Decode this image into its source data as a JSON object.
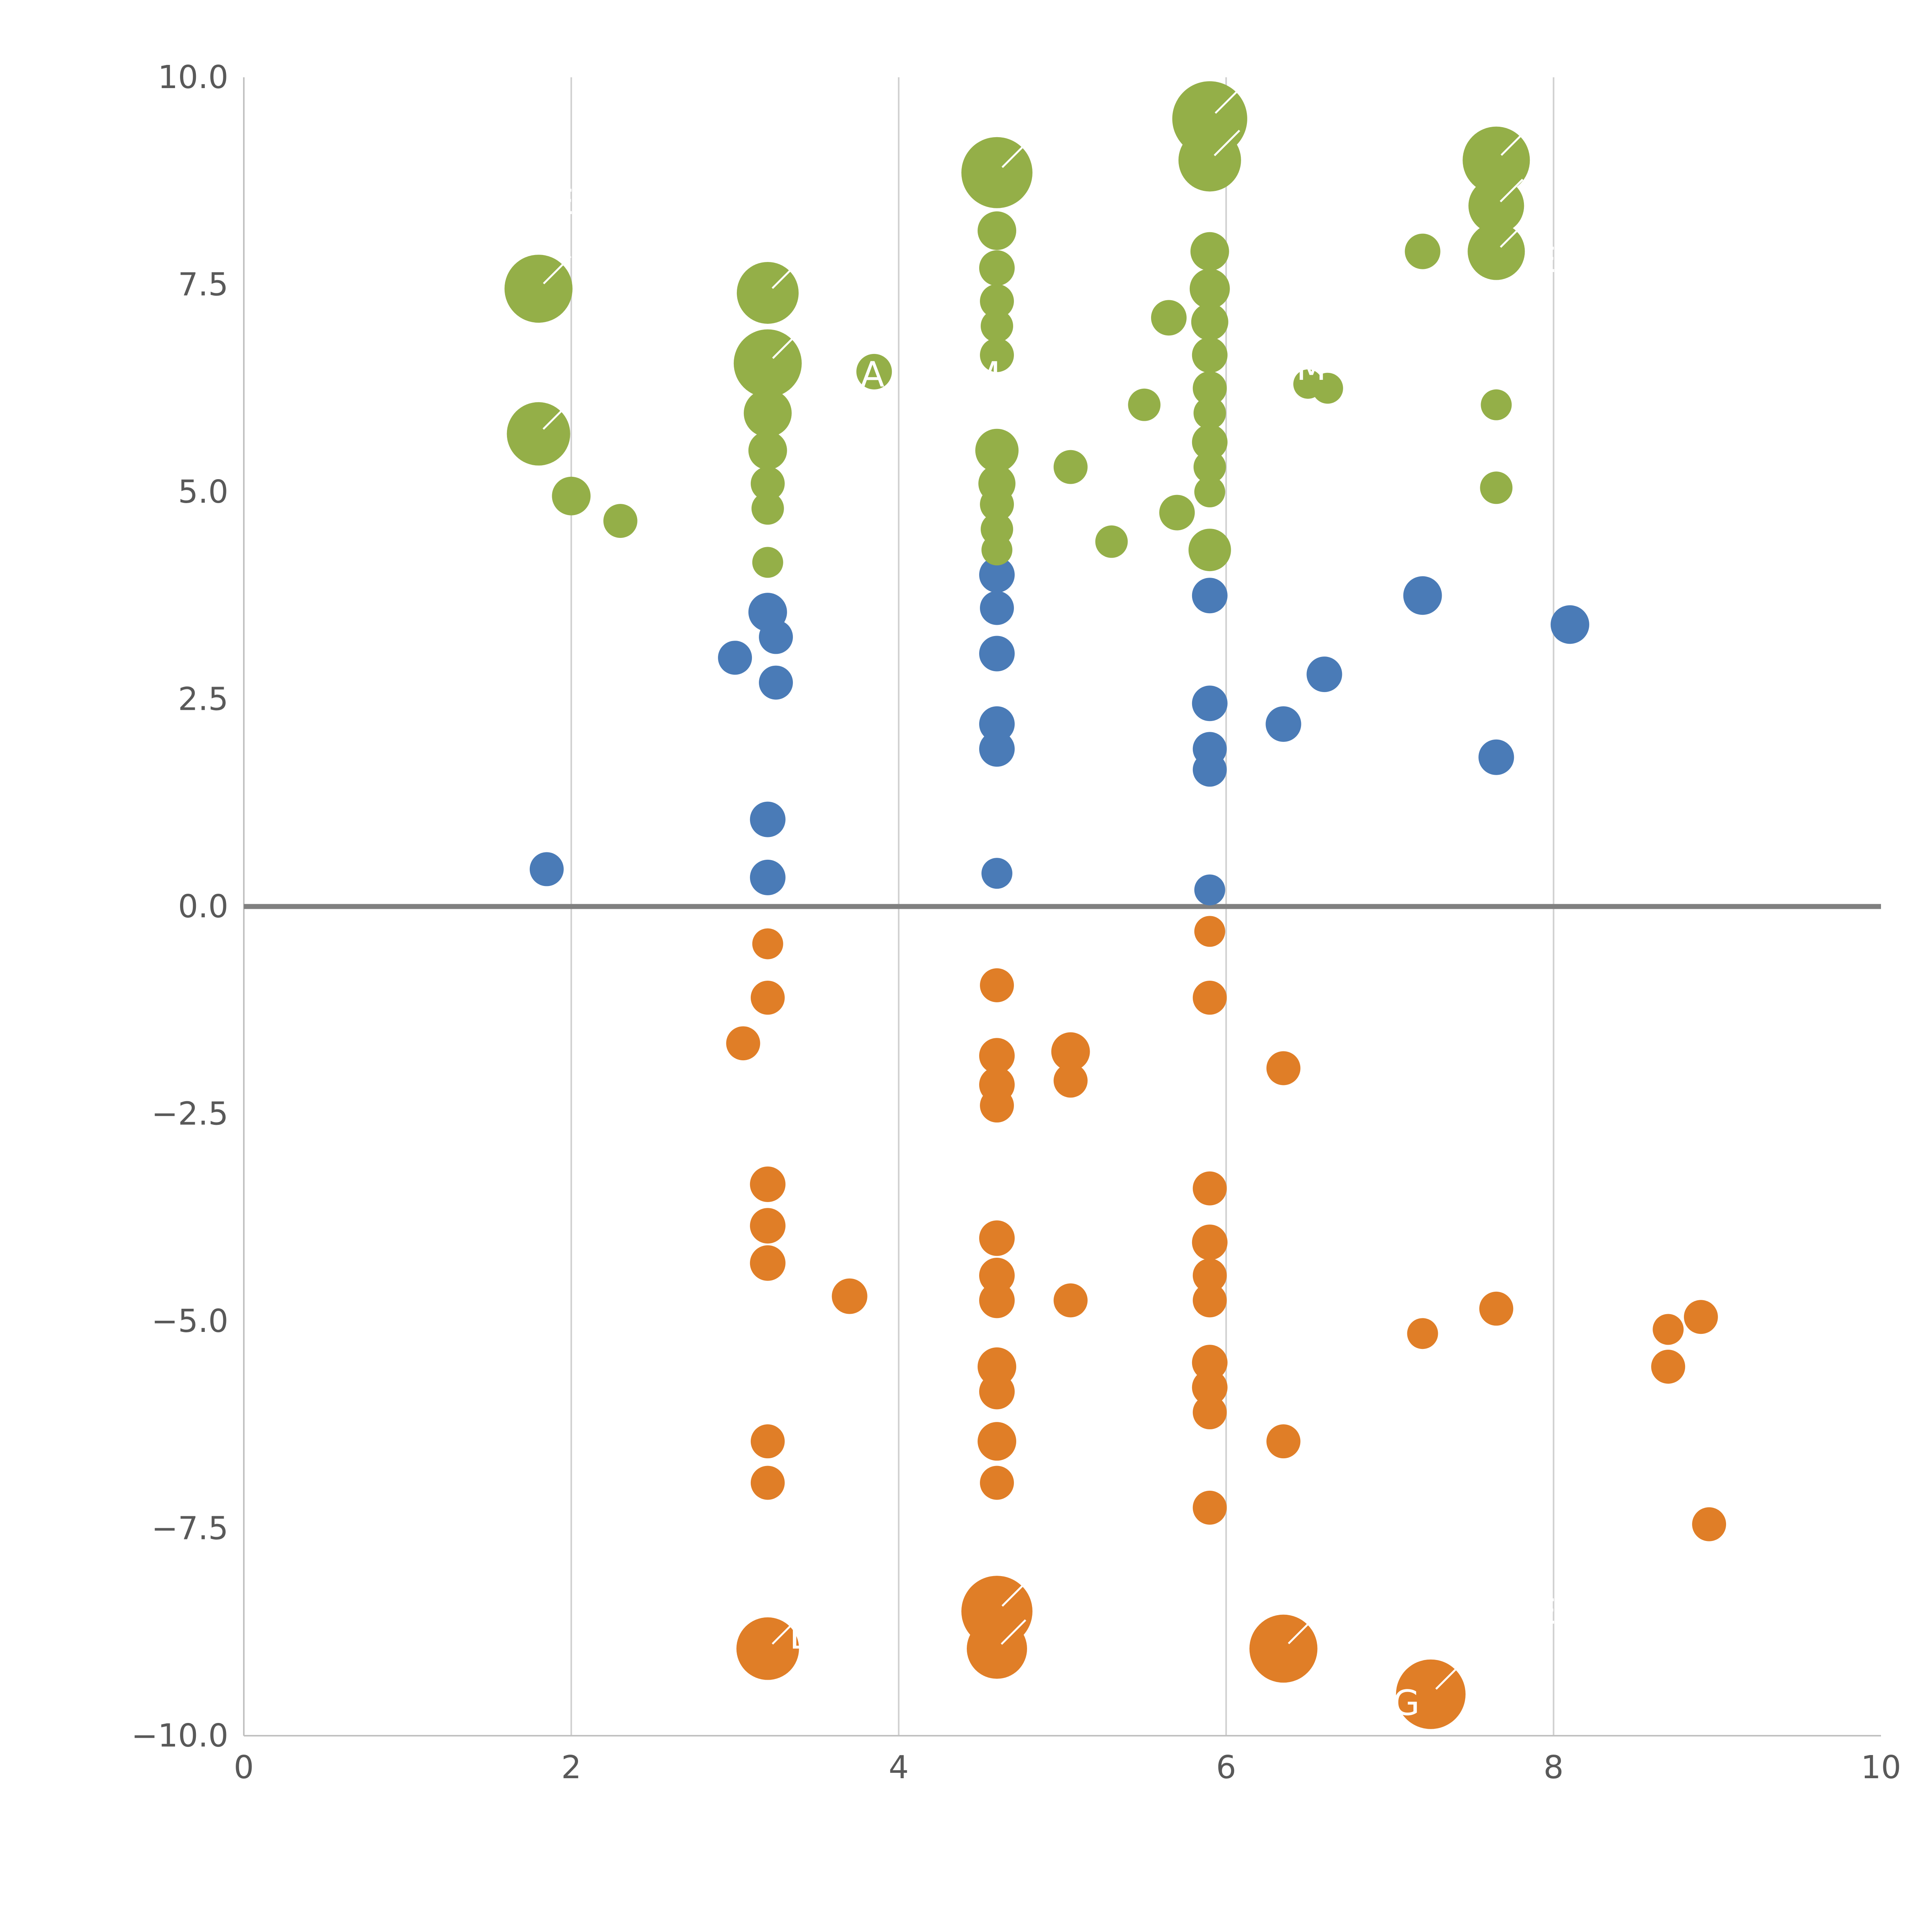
{
  "page": {
    "background": "#ffffff",
    "title": ""
  },
  "axis_style": {
    "tick_label_color": "#595959",
    "grid_color": "#cfcfcf",
    "spine_color": "#c0c0c0",
    "zero_line_color": "#808080",
    "annotation_color": "#ffffff"
  },
  "chart_data": {
    "type": "scatter",
    "title": "",
    "xlabel": "",
    "ylabel": "",
    "xlim": [
      0,
      10
    ],
    "ylim": [
      -10,
      10
    ],
    "grid": {
      "vertical_at": [
        2,
        4,
        6,
        8
      ],
      "horizontal": false,
      "zero_line": true
    },
    "legend": {
      "visible": false
    },
    "x_ticks": [
      {
        "value": 0,
        "label": "0"
      },
      {
        "value": 2,
        "label": "2"
      },
      {
        "value": 4,
        "label": "4"
      },
      {
        "value": 6,
        "label": "6"
      },
      {
        "value": 8,
        "label": "8"
      },
      {
        "value": 10,
        "label": "10"
      }
    ],
    "y_ticks": [
      {
        "value": 10.0,
        "label": "10.0"
      },
      {
        "value": 7.5,
        "label": "7.5"
      },
      {
        "value": 5.0,
        "label": "5.0"
      },
      {
        "value": 2.5,
        "label": "2.5"
      },
      {
        "value": 0.0,
        "label": "0.0"
      },
      {
        "value": -2.5,
        "label": "−2.5"
      },
      {
        "value": -5.0,
        "label": "−5.0"
      },
      {
        "value": -7.5,
        "label": "−7.5"
      },
      {
        "value": -10.0,
        "label": "−10.0"
      }
    ],
    "series": [
      {
        "name": "blue",
        "color": "#4a7bb7",
        "points": [
          [
            1.85,
            0.45,
            44
          ],
          [
            3.0,
            3.0,
            44
          ],
          [
            3.2,
            3.55,
            50
          ],
          [
            3.25,
            3.25,
            44
          ],
          [
            3.25,
            2.7,
            44
          ],
          [
            3.2,
            1.05,
            46
          ],
          [
            3.2,
            0.35,
            46
          ],
          [
            4.6,
            4.0,
            46
          ],
          [
            4.6,
            3.6,
            44
          ],
          [
            4.6,
            3.05,
            46
          ],
          [
            4.6,
            2.2,
            46
          ],
          [
            4.6,
            1.9,
            46
          ],
          [
            4.6,
            0.4,
            40
          ],
          [
            5.9,
            3.75,
            46
          ],
          [
            5.9,
            2.45,
            46
          ],
          [
            5.9,
            1.9,
            44
          ],
          [
            5.9,
            1.65,
            44
          ],
          [
            5.9,
            0.2,
            40
          ],
          [
            6.35,
            2.2,
            46
          ],
          [
            6.6,
            2.8,
            46
          ],
          [
            7.2,
            3.75,
            50
          ],
          [
            7.65,
            1.8,
            46
          ],
          [
            8.1,
            3.4,
            50
          ]
        ]
      },
      {
        "name": "green",
        "color": "#94af48",
        "points": [
          [
            1.8,
            7.45,
            88
          ],
          [
            1.8,
            5.7,
            82
          ],
          [
            2.0,
            4.95,
            50
          ],
          [
            2.3,
            4.65,
            44
          ],
          [
            3.2,
            7.4,
            80
          ],
          [
            3.2,
            6.55,
            88
          ],
          [
            3.2,
            5.95,
            62
          ],
          [
            3.2,
            5.5,
            50
          ],
          [
            3.2,
            5.1,
            44
          ],
          [
            3.2,
            4.8,
            42
          ],
          [
            3.2,
            4.15,
            40
          ],
          [
            3.85,
            6.45,
            46
          ],
          [
            4.6,
            8.85,
            92
          ],
          [
            4.6,
            8.15,
            50
          ],
          [
            4.6,
            7.7,
            46
          ],
          [
            4.6,
            7.3,
            44
          ],
          [
            4.6,
            7.0,
            42
          ],
          [
            4.6,
            6.65,
            44
          ],
          [
            4.6,
            5.5,
            56
          ],
          [
            4.6,
            5.1,
            48
          ],
          [
            4.6,
            4.85,
            44
          ],
          [
            4.6,
            4.55,
            42
          ],
          [
            4.6,
            4.3,
            40
          ],
          [
            5.05,
            5.3,
            44
          ],
          [
            5.3,
            4.4,
            42
          ],
          [
            5.5,
            6.05,
            42
          ],
          [
            5.65,
            7.1,
            46
          ],
          [
            5.7,
            4.75,
            46
          ],
          [
            5.9,
            9.5,
            97
          ],
          [
            5.9,
            9.0,
            81
          ],
          [
            5.9,
            7.9,
            50
          ],
          [
            5.9,
            7.45,
            52
          ],
          [
            5.9,
            7.05,
            48
          ],
          [
            5.9,
            6.65,
            46
          ],
          [
            5.9,
            6.25,
            44
          ],
          [
            5.9,
            5.95,
            42
          ],
          [
            5.9,
            5.6,
            46
          ],
          [
            5.9,
            5.3,
            42
          ],
          [
            5.9,
            5.0,
            40
          ],
          [
            5.9,
            4.3,
            55
          ],
          [
            6.5,
            6.3,
            38
          ],
          [
            6.62,
            6.25,
            40
          ],
          [
            7.2,
            7.9,
            46
          ],
          [
            7.65,
            9.0,
            87
          ],
          [
            7.65,
            8.45,
            72
          ],
          [
            7.65,
            7.9,
            74
          ],
          [
            7.65,
            6.05,
            40
          ],
          [
            7.65,
            5.05,
            42
          ]
        ]
      },
      {
        "name": "orange",
        "color": "#e07e27",
        "points": [
          [
            3.2,
            -0.45,
            40
          ],
          [
            3.2,
            -1.1,
            44
          ],
          [
            3.05,
            -1.65,
            44
          ],
          [
            3.2,
            -3.35,
            46
          ],
          [
            3.2,
            -3.85,
            46
          ],
          [
            3.2,
            -4.3,
            46
          ],
          [
            3.7,
            -4.7,
            46
          ],
          [
            3.2,
            -6.45,
            44
          ],
          [
            3.2,
            -6.95,
            44
          ],
          [
            3.2,
            -8.95,
            81
          ],
          [
            4.6,
            -0.95,
            44
          ],
          [
            4.6,
            -1.8,
            46
          ],
          [
            4.6,
            -2.15,
            46
          ],
          [
            4.6,
            -2.4,
            44
          ],
          [
            4.6,
            -4.0,
            46
          ],
          [
            4.6,
            -4.45,
            46
          ],
          [
            4.6,
            -4.75,
            46
          ],
          [
            4.6,
            -5.55,
            50
          ],
          [
            4.6,
            -5.85,
            46
          ],
          [
            4.6,
            -6.45,
            50
          ],
          [
            4.6,
            -6.95,
            44
          ],
          [
            4.6,
            -8.5,
            92
          ],
          [
            4.6,
            -8.95,
            78
          ],
          [
            5.05,
            -1.75,
            50
          ],
          [
            5.05,
            -2.1,
            44
          ],
          [
            5.05,
            -4.75,
            44
          ],
          [
            5.9,
            -0.3,
            40
          ],
          [
            5.9,
            -1.1,
            44
          ],
          [
            5.9,
            -3.4,
            44
          ],
          [
            5.9,
            -4.05,
            46
          ],
          [
            5.9,
            -4.45,
            44
          ],
          [
            5.9,
            -4.75,
            44
          ],
          [
            5.9,
            -5.5,
            46
          ],
          [
            5.9,
            -5.8,
            46
          ],
          [
            5.9,
            -6.1,
            44
          ],
          [
            5.9,
            -7.25,
            44
          ],
          [
            6.35,
            -1.95,
            44
          ],
          [
            6.35,
            -6.45,
            44
          ],
          [
            6.35,
            -8.95,
            88
          ],
          [
            7.2,
            -5.15,
            40
          ],
          [
            7.25,
            -9.5,
            90
          ],
          [
            7.65,
            -4.85,
            44
          ],
          [
            8.7,
            -5.1,
            40
          ],
          [
            8.9,
            -4.95,
            44
          ],
          [
            8.7,
            -5.55,
            44
          ],
          [
            8.95,
            -7.45,
            44
          ]
        ]
      }
    ],
    "annotations": [
      {
        "text": "E",
        "x": 1.95,
        "y": 8.5
      },
      {
        "text": "A",
        "x": 3.84,
        "y": 6.42
      },
      {
        "text": "M",
        "x": 4.53,
        "y": 6.42
      },
      {
        "text": "M",
        "x": 6.52,
        "y": 6.5
      },
      {
        "text": "E",
        "x": 7.95,
        "y": 7.8
      },
      {
        "text": "E",
        "x": 3.4,
        "y": -8.8
      },
      {
        "text": "E",
        "x": 7.95,
        "y": -8.5
      },
      {
        "text": "G",
        "x": 7.1,
        "y": -9.6
      }
    ]
  }
}
